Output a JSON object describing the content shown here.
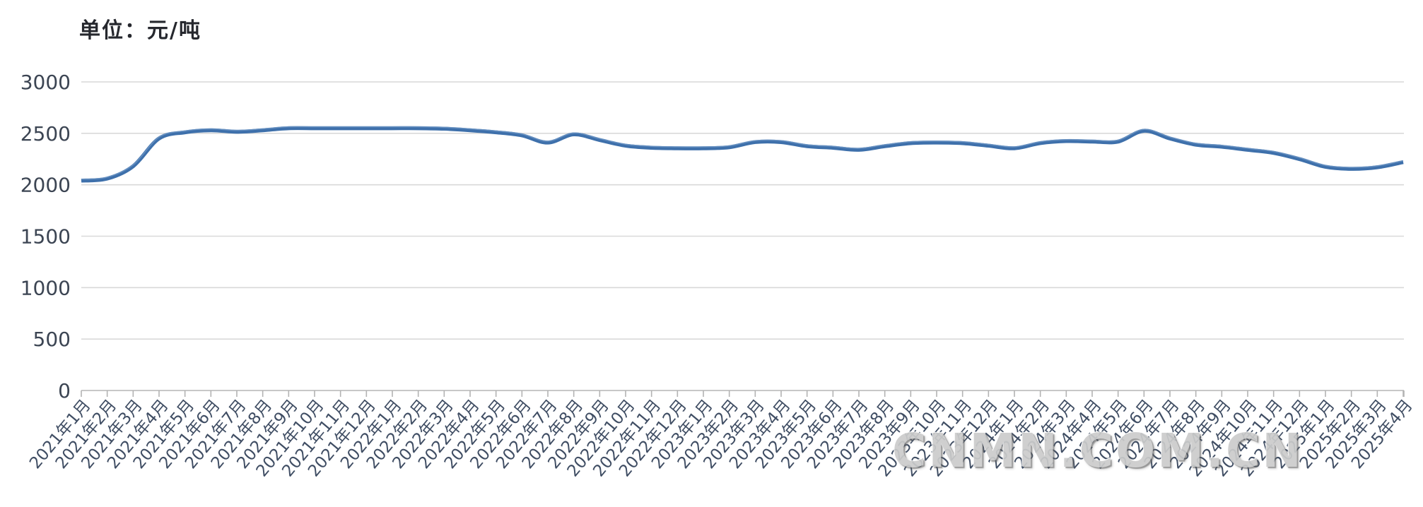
{
  "chart": {
    "unit_label": "单位：元/吨"
  },
  "watermark": {
    "text": "CNMN.COM.CN"
  },
  "chart_data": {
    "type": "line",
    "title": "单位：元/吨",
    "xlabel": "",
    "ylabel": "元/吨",
    "ylim": [
      0,
      3000
    ],
    "ytick_step": 500,
    "yticks": [
      0,
      500,
      1000,
      1500,
      2000,
      2500,
      3000
    ],
    "grid": true,
    "legend": "none",
    "smoothed": true,
    "x_label_rotation_deg": -50,
    "line_color": "#3e70ab",
    "gridline_color": "#d9d9d9",
    "axis_color": "#c0c0c0",
    "tick_color": "#b3b3b3",
    "categories": [
      "2021年1月",
      "2021年2月",
      "2021年3月",
      "2021年4月",
      "2021年5月",
      "2021年6月",
      "2021年7月",
      "2021年8月",
      "2021年9月",
      "2021年10月",
      "2021年11月",
      "2021年12月",
      "2022年1月",
      "2022年2月",
      "2022年3月",
      "2022年4月",
      "2022年5月",
      "2022年6月",
      "2022年7月",
      "2022年8月",
      "2022年9月",
      "2022年10月",
      "2022年11月",
      "2022年12月",
      "2023年1月",
      "2023年2月",
      "2023年3月",
      "2023年4月",
      "2023年5月",
      "2023年6月",
      "2023年7月",
      "2023年8月",
      "2023年9月",
      "2023年10月",
      "2023年11月",
      "2023年12月",
      "2024年1月",
      "2024年2月",
      "2024年3月",
      "2024年4月",
      "2024年5月",
      "2024年6月",
      "2024年7月",
      "2024年8月",
      "2024年9月",
      "2024年10月",
      "2024年11月",
      "2024年12月",
      "2025年1月",
      "2025年2月",
      "2025年3月",
      "2025年4月"
    ],
    "series": [
      {
        "name": "",
        "values": [
          2040,
          2060,
          2180,
          2450,
          2510,
          2530,
          2515,
          2530,
          2550,
          2550,
          2550,
          2550,
          2550,
          2550,
          2545,
          2530,
          2510,
          2480,
          2410,
          2490,
          2435,
          2380,
          2360,
          2355,
          2355,
          2365,
          2415,
          2415,
          2375,
          2360,
          2340,
          2375,
          2405,
          2410,
          2405,
          2380,
          2355,
          2405,
          2425,
          2420,
          2420,
          2525,
          2450,
          2390,
          2370,
          2340,
          2310,
          2250,
          2175,
          2155,
          2170,
          2220
        ]
      }
    ]
  }
}
